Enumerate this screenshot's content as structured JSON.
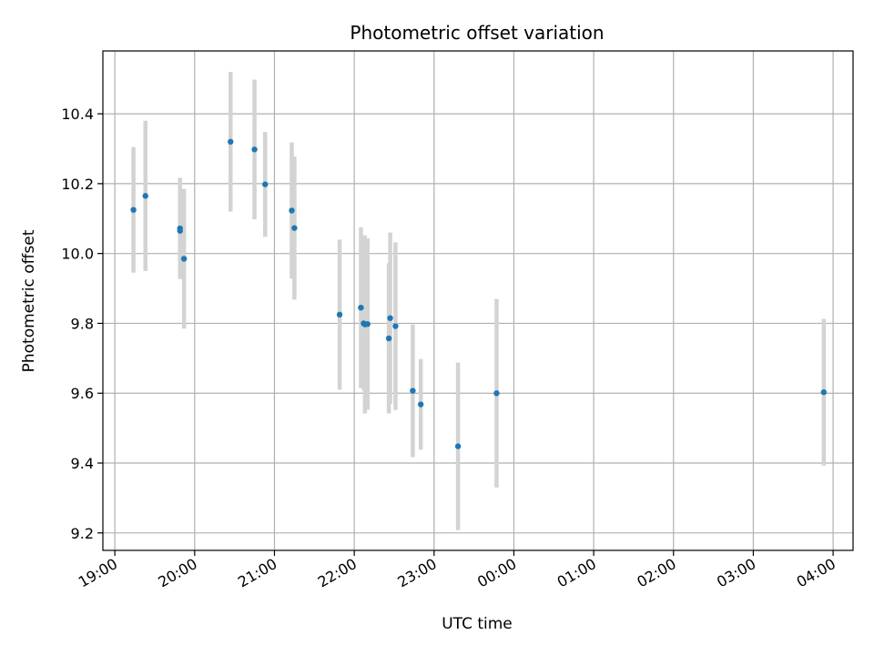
{
  "chart_data": {
    "type": "scatter",
    "title": "Photometric offset variation",
    "xlabel": "UTC time",
    "ylabel": "Photometric offset",
    "x_axis_type": "time",
    "x_ticks": [
      "19:00",
      "20:00",
      "21:00",
      "22:00",
      "23:00",
      "00:00",
      "01:00",
      "02:00",
      "03:00",
      "04:00"
    ],
    "y_ticks": [
      "9.2",
      "9.4",
      "9.6",
      "9.8",
      "10.0",
      "10.2",
      "10.4"
    ],
    "xlim": [
      "18:51",
      "04:15"
    ],
    "ylim": [
      9.15,
      10.58
    ],
    "grid": true,
    "colors": {
      "point": "#1f77b4",
      "error_bar": "#d3d3d3",
      "grid": "#b0b0b0"
    },
    "series": [
      {
        "points": [
          {
            "x": "19:14",
            "y": 10.125,
            "err": 0.18
          },
          {
            "x": "19:23",
            "y": 10.165,
            "err": 0.215
          },
          {
            "x": "19:49",
            "y": 10.072,
            "err": 0.145
          },
          {
            "x": "19:49",
            "y": 10.065,
            "err": 0.135
          },
          {
            "x": "19:52",
            "y": 9.985,
            "err": 0.2
          },
          {
            "x": "20:27",
            "y": 10.32,
            "err": 0.2
          },
          {
            "x": "20:45",
            "y": 10.298,
            "err": 0.2
          },
          {
            "x": "20:53",
            "y": 10.198,
            "err": 0.15
          },
          {
            "x": "21:13",
            "y": 10.123,
            "err": 0.195
          },
          {
            "x": "21:15",
            "y": 10.073,
            "err": 0.205
          },
          {
            "x": "21:49",
            "y": 9.825,
            "err": 0.215
          },
          {
            "x": "22:05",
            "y": 9.845,
            "err": 0.23
          },
          {
            "x": "22:07",
            "y": 9.8,
            "err": 0.19
          },
          {
            "x": "22:08",
            "y": 9.797,
            "err": 0.255
          },
          {
            "x": "22:10",
            "y": 9.798,
            "err": 0.245
          },
          {
            "x": "22:26",
            "y": 9.757,
            "err": 0.215
          },
          {
            "x": "22:27",
            "y": 9.815,
            "err": 0.245
          },
          {
            "x": "22:31",
            "y": 9.792,
            "err": 0.24
          },
          {
            "x": "22:44",
            "y": 9.607,
            "err": 0.19
          },
          {
            "x": "22:50",
            "y": 9.568,
            "err": 0.13
          },
          {
            "x": "23:18",
            "y": 9.448,
            "err": 0.24
          },
          {
            "x": "23:47",
            "y": 9.6,
            "err": 0.27
          },
          {
            "x": "03:53",
            "y": 9.603,
            "err": 0.21
          }
        ]
      }
    ]
  }
}
